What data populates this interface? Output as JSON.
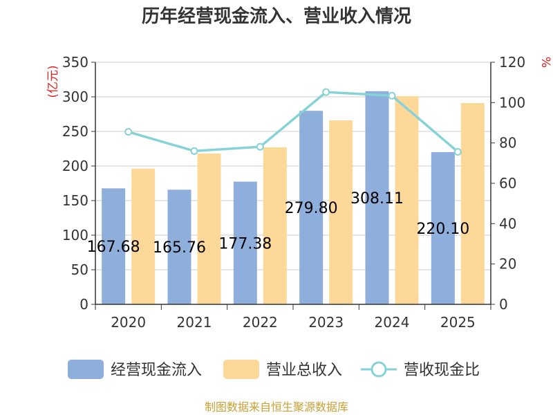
{
  "chart_data": {
    "type": "bar",
    "title": "历年经营现金流入、营业收入情况",
    "categories": [
      "2020",
      "2021",
      "2022",
      "2023",
      "2024",
      "2025"
    ],
    "series": [
      {
        "name": "经营现金流入",
        "type": "bar",
        "axis": "left",
        "color": "#8eaedb",
        "values": [
          167.68,
          165.76,
          177.38,
          279.8,
          308.11,
          220.1
        ],
        "data_labels": [
          "167.68",
          "165.76",
          "177.38",
          "279.80",
          "308.11",
          "220.10"
        ]
      },
      {
        "name": "营业总收入",
        "type": "bar",
        "axis": "left",
        "color": "#fed898",
        "values": [
          196,
          218,
          227,
          266,
          301,
          291
        ]
      },
      {
        "name": "营收现金比",
        "type": "line",
        "axis": "right",
        "color": "#86d2d6",
        "values": [
          85.5,
          76.0,
          78.1,
          105.2,
          103.4,
          75.6
        ]
      }
    ],
    "y_left": {
      "label": "(亿元)",
      "range": [
        0,
        350
      ],
      "ticks": [
        "0",
        "50",
        "100",
        "150",
        "200",
        "250",
        "300",
        "350"
      ]
    },
    "y_right": {
      "label": "%",
      "range": [
        0,
        120
      ],
      "ticks": [
        "0",
        "20",
        "40",
        "60",
        "80",
        "100",
        "120"
      ]
    },
    "grid": true,
    "legend_position": "bottom"
  },
  "footer": "制图数据来自恒生聚源数据库"
}
